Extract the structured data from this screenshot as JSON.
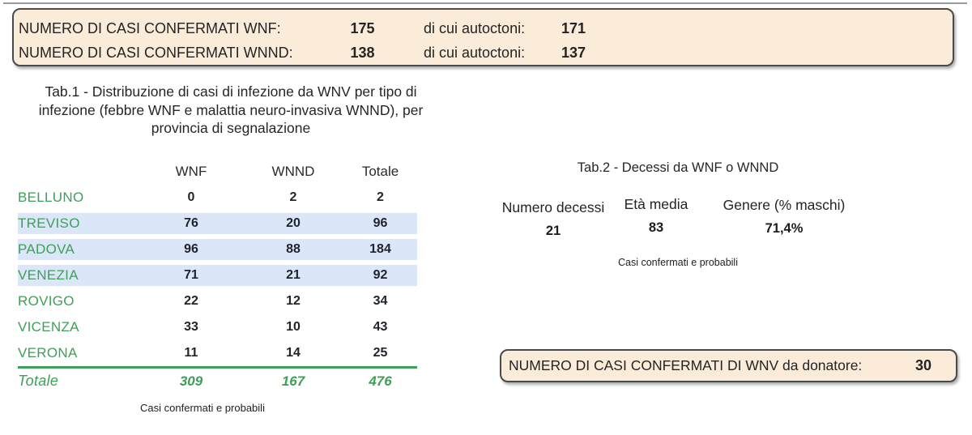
{
  "colors": {
    "box_bg": "#faecd9",
    "box_border": "#4a4a4a",
    "highlight_blue": "#dbe7f8",
    "accent_green": "#3f9e58",
    "text": "#242424"
  },
  "summary_box": {
    "rows": [
      {
        "label": "NUMERO DI CASI CONFERMATI WNF:",
        "value": "175",
        "sub_label": "di cui autoctoni:",
        "sub_value": "171"
      },
      {
        "label": "NUMERO DI CASI CONFERMATI WNND:",
        "value": "138",
        "sub_label": "di cui autoctoni:",
        "sub_value": "137"
      }
    ]
  },
  "table1": {
    "title_lines": [
      "Tab.1 - Distribuzione di casi di infezione da WNV per tipo di",
      "infezione (febbre WNF e malattia neuro-invasiva WNND), per",
      "provincia di segnalazione"
    ],
    "columns": [
      "WNF",
      "WNND",
      "Totale"
    ],
    "rows": [
      {
        "province": "BELLUNO",
        "wnf": "0",
        "wnnd": "2",
        "totale": "2",
        "highlight": false
      },
      {
        "province": "TREVISO",
        "wnf": "76",
        "wnnd": "20",
        "totale": "96",
        "highlight": true
      },
      {
        "province": "PADOVA",
        "wnf": "96",
        "wnnd": "88",
        "totale": "184",
        "highlight": true
      },
      {
        "province": "VENEZIA",
        "wnf": "71",
        "wnnd": "21",
        "totale": "92",
        "highlight": true
      },
      {
        "province": "ROVIGO",
        "wnf": "22",
        "wnnd": "12",
        "totale": "34",
        "highlight": false
      },
      {
        "province": "VICENZA",
        "wnf": "33",
        "wnnd": "10",
        "totale": "43",
        "highlight": false
      },
      {
        "province": "VERONA",
        "wnf": "11",
        "wnnd": "14",
        "totale": "25",
        "highlight": false
      }
    ],
    "total_row": {
      "label": "Totale",
      "wnf": "309",
      "wnnd": "167",
      "totale": "476"
    },
    "footnote": "Casi confermati e probabili"
  },
  "table2": {
    "title": "Tab.2 - Decessi da WNF o WNND",
    "stats": [
      {
        "label": "Numero decessi",
        "value": "21"
      },
      {
        "label": "Età media",
        "value": "83"
      },
      {
        "label": "Genere (% maschi)",
        "value": "71,4%"
      }
    ],
    "footnote": "Casi confermati e probabili"
  },
  "donor_box": {
    "label": "NUMERO DI CASI CONFERMATI DI WNV da donatore:",
    "value": "30"
  }
}
